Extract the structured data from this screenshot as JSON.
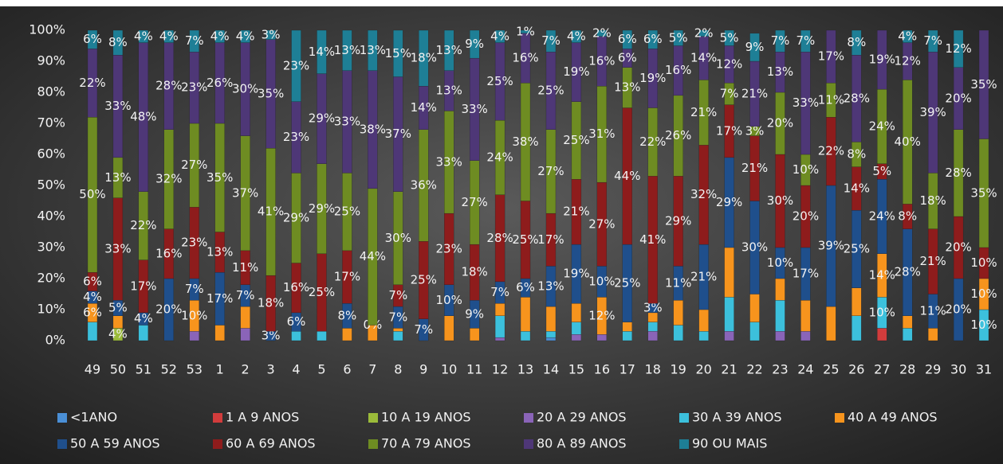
{
  "chart_data": {
    "type": "stacked_bar",
    "categories": [
      "49",
      "50",
      "51",
      "52",
      "53",
      "1",
      "2",
      "3",
      "4",
      "5",
      "6",
      "7",
      "8",
      "9",
      "10",
      "11",
      "12",
      "13",
      "14",
      "15",
      "16",
      "17",
      "18",
      "19",
      "20",
      "21",
      "22",
      "23",
      "24",
      "25",
      "26",
      "27",
      "28",
      "29",
      "30",
      "31"
    ],
    "ylim": [
      0,
      100
    ],
    "yticks": [
      {
        "value": 0,
        "label": "0%"
      },
      {
        "value": 10,
        "label": "10%"
      },
      {
        "value": 20,
        "label": "20%"
      },
      {
        "value": 30,
        "label": "30%"
      },
      {
        "value": 40,
        "label": "40%"
      },
      {
        "value": 50,
        "label": "50%"
      },
      {
        "value": 60,
        "label": "60%"
      },
      {
        "value": 70,
        "label": "70%"
      },
      {
        "value": 80,
        "label": "80%"
      },
      {
        "value": 90,
        "label": "90%"
      },
      {
        "value": 100,
        "label": "100%"
      }
    ],
    "legend": "bottom",
    "series": [
      {
        "name": "<1ANO",
        "color": "#4a8fd6",
        "values": [
          0,
          0,
          0,
          0,
          0,
          0,
          0,
          0,
          0,
          0,
          0,
          0,
          0,
          0,
          0,
          0,
          0,
          0,
          1,
          0,
          0,
          0,
          0,
          0,
          0,
          0,
          0,
          0,
          0,
          0,
          0,
          0,
          0,
          0,
          0,
          0
        ]
      },
      {
        "name": "1 A 9 ANOS",
        "color": "#d23c3c",
        "values": [
          0,
          0,
          0,
          0,
          0,
          0,
          0,
          0,
          0,
          0,
          0,
          0,
          0,
          0,
          0,
          0,
          0,
          0,
          0,
          0,
          0,
          0,
          0,
          0,
          0,
          0,
          0,
          0,
          0,
          0,
          0,
          4,
          0,
          0,
          0,
          0
        ]
      },
      {
        "name": "10 A 19 ANOS",
        "color": "#9bbb3a",
        "values": [
          0,
          4,
          0,
          0,
          0,
          0,
          0,
          0,
          0,
          0,
          0,
          0,
          0,
          0,
          0,
          0,
          0,
          0,
          0,
          0,
          0,
          0,
          0,
          0,
          0,
          0,
          0,
          0,
          0,
          0,
          0,
          0,
          0,
          0,
          0,
          0
        ],
        "value_labels": [
          null,
          "4%",
          null,
          null,
          null,
          null,
          null,
          null,
          null,
          null,
          null,
          null,
          null,
          null,
          null,
          null,
          null,
          null,
          null,
          null,
          null,
          null,
          null,
          null,
          null,
          null,
          null,
          null,
          null,
          null,
          null,
          null,
          null,
          null,
          null,
          null
        ]
      },
      {
        "name": "20 A 29 ANOS",
        "color": "#8a64b8",
        "values": [
          0,
          0,
          0,
          0,
          3,
          0,
          4,
          0,
          0,
          0,
          0,
          0,
          0,
          0,
          0,
          0,
          1,
          0,
          0,
          2,
          2,
          0,
          3,
          0,
          0,
          3,
          0,
          3,
          3,
          0,
          0,
          0,
          0,
          0,
          0,
          0
        ]
      },
      {
        "name": "30 A 39 ANOS",
        "color": "#3cc0dc",
        "values": [
          6,
          0,
          5,
          0,
          0,
          0,
          0,
          0,
          3,
          3,
          0,
          0,
          3,
          0,
          0,
          0,
          7,
          3,
          2,
          4,
          0,
          3,
          3,
          5,
          3,
          11,
          6,
          10,
          0,
          0,
          8,
          10,
          4,
          0,
          0,
          10
        ],
        "value_labels": [
          null,
          null,
          null,
          null,
          null,
          null,
          null,
          null,
          null,
          null,
          null,
          null,
          null,
          null,
          null,
          null,
          null,
          null,
          null,
          null,
          null,
          null,
          null,
          null,
          null,
          null,
          null,
          null,
          null,
          null,
          null,
          "10%",
          null,
          null,
          null,
          "10%"
        ]
      },
      {
        "name": "40 A 49 ANOS",
        "color": "#f7941d",
        "values": [
          6,
          4,
          0,
          0,
          10,
          5,
          7,
          0,
          0,
          0,
          4,
          5,
          1,
          0,
          8,
          4,
          4,
          11,
          8,
          6,
          12,
          3,
          3,
          8,
          7,
          16,
          9,
          7,
          10,
          11,
          9,
          14,
          4,
          4,
          0,
          10
        ],
        "value_labels": [
          "6%",
          null,
          null,
          null,
          "10%",
          null,
          null,
          null,
          null,
          null,
          null,
          null,
          null,
          null,
          null,
          null,
          null,
          null,
          null,
          null,
          "12%",
          null,
          null,
          null,
          null,
          null,
          null,
          null,
          null,
          null,
          null,
          "14%",
          null,
          null,
          null,
          "10%"
        ]
      },
      {
        "name": "50 A 59 ANOS",
        "color": "#1f4f8c",
        "values": [
          4,
          5,
          4,
          20,
          7,
          17,
          7,
          3,
          6,
          0,
          8,
          0,
          7,
          7,
          10,
          9,
          7,
          6,
          13,
          19,
          10,
          25,
          3,
          11,
          21,
          29,
          30,
          10,
          17,
          39,
          25,
          24,
          28,
          11,
          20,
          0
        ],
        "value_labels": [
          "4%",
          "5%",
          "4%",
          "20%",
          "7%",
          "17%",
          "7%",
          "3%",
          "6%",
          null,
          "8%",
          null,
          "7%",
          "7%",
          "10%",
          "9%",
          "7%",
          "6%",
          "13%",
          "19%",
          "10%",
          "25%",
          "3%",
          "11%",
          "21%",
          "29%",
          "30%",
          "10%",
          "17%",
          "39%",
          "25%",
          "24%",
          "28%",
          "11%",
          "20%",
          null
        ]
      },
      {
        "name": "60 A 69 ANOS",
        "color": "#8e1c1c",
        "values": [
          6,
          33,
          17,
          16,
          23,
          13,
          11,
          18,
          16,
          25,
          17,
          0,
          7,
          25,
          23,
          18,
          28,
          25,
          17,
          21,
          27,
          44,
          41,
          29,
          32,
          17,
          21,
          30,
          20,
          22,
          14,
          5,
          8,
          21,
          20,
          10
        ],
        "value_labels": [
          "6%",
          "33%",
          "17%",
          "16%",
          "23%",
          "13%",
          "11%",
          "18%",
          "16%",
          "25%",
          "17%",
          "0%",
          "7%",
          "25%",
          "23%",
          "18%",
          "28%",
          "25%",
          "17%",
          "21%",
          "27%",
          "44%",
          "41%",
          "29%",
          "32%",
          "17%",
          "21%",
          "30%",
          "20%",
          "22%",
          "14%",
          "5%",
          "8%",
          "21%",
          "20%",
          "10%"
        ]
      },
      {
        "name": "70 A 79 ANOS",
        "color": "#6e8c22",
        "values": [
          50,
          13,
          22,
          32,
          27,
          35,
          37,
          41,
          29,
          29,
          25,
          44,
          30,
          36,
          33,
          27,
          24,
          38,
          27,
          25,
          31,
          13,
          22,
          26,
          21,
          7,
          3,
          20,
          10,
          11,
          8,
          24,
          40,
          18,
          28,
          35
        ],
        "value_labels": [
          "50%",
          "13%",
          "22%",
          "32%",
          "27%",
          "35%",
          "37%",
          "41%",
          "29%",
          "29%",
          "25%",
          "44%",
          "30%",
          "36%",
          "33%",
          "27%",
          "24%",
          "38%",
          "27%",
          "25%",
          "31%",
          "13%",
          "22%",
          "26%",
          "21%",
          "7%",
          "3%",
          "20%",
          "10%",
          "11%",
          "8%",
          "24%",
          "40%",
          "18%",
          "28%",
          "35%"
        ]
      },
      {
        "name": "80 A 89 ANOS",
        "color": "#4e3777",
        "values": [
          22,
          33,
          48,
          28,
          23,
          26,
          30,
          35,
          23,
          29,
          33,
          38,
          37,
          14,
          13,
          33,
          25,
          16,
          25,
          19,
          16,
          6,
          19,
          16,
          14,
          12,
          21,
          13,
          33,
          17,
          28,
          19,
          12,
          39,
          20,
          35
        ],
        "value_labels": [
          "22%",
          "33%",
          "48%",
          "28%",
          "23%",
          "26%",
          "30%",
          "35%",
          "23%",
          "29%",
          "33%",
          "38%",
          "37%",
          "14%",
          "13%",
          "33%",
          "25%",
          "16%",
          "25%",
          "19%",
          "16%",
          "6%",
          "19%",
          "16%",
          "14%",
          "12%",
          "21%",
          "13%",
          "33%",
          "17%",
          "28%",
          "19%",
          "12%",
          "39%",
          "20%",
          "35%"
        ]
      },
      {
        "name": "90 OU MAIS",
        "color": "#1e7f96",
        "values": [
          6,
          8,
          4,
          4,
          7,
          4,
          4,
          3,
          23,
          14,
          13,
          13,
          15,
          18,
          13,
          9,
          4,
          1,
          7,
          4,
          2,
          6,
          6,
          5,
          2,
          5,
          9,
          7,
          7,
          0,
          8,
          0,
          4,
          7,
          12,
          0
        ],
        "value_labels": [
          "6%",
          "8%",
          "4%",
          "4%",
          "7%",
          "4%",
          "4%",
          "3%",
          "23%",
          "14%",
          "13%",
          "13%",
          "15%",
          "18%",
          "13%",
          "9%",
          "4%",
          "1%",
          "7%",
          "4%",
          "2%",
          "6%",
          "6%",
          "5%",
          "2%",
          "5%",
          "9%",
          "7%",
          "7%",
          null,
          "8%",
          null,
          "4%",
          "7%",
          "12%",
          null
        ]
      }
    ]
  }
}
